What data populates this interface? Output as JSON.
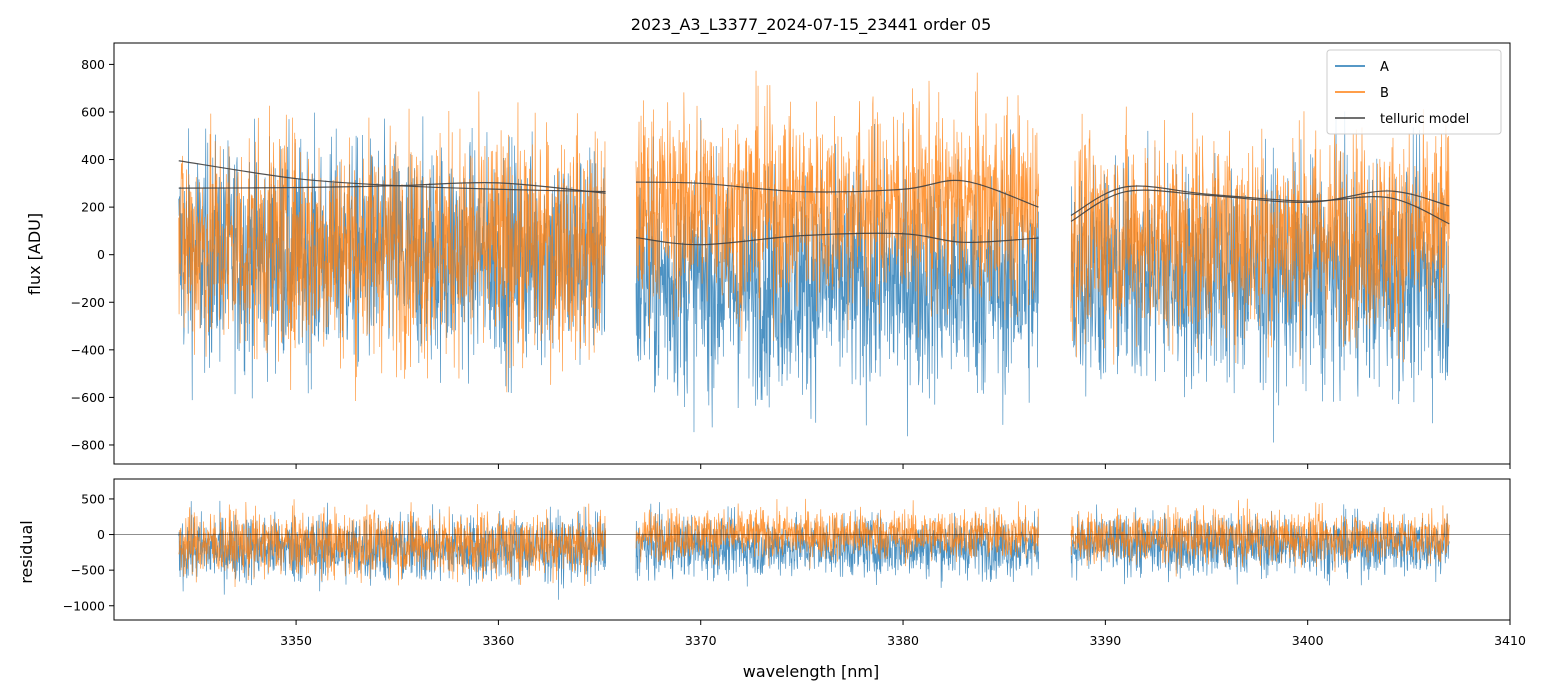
{
  "chart_data": [
    {
      "type": "line",
      "title": "2023_A3_L3377_2024-07-15_23441  order 05",
      "ylabel": "flux [ADU]",
      "xlim": [
        3341,
        3410
      ],
      "ylim": [
        -880,
        890
      ],
      "x_ticks": [
        3350,
        3360,
        3370,
        3380,
        3390,
        3400,
        3410
      ],
      "y_ticks": [
        -800,
        -600,
        -400,
        -200,
        0,
        200,
        400,
        600,
        800
      ],
      "y_tick_labels": [
        "−800",
        "−600",
        "−400",
        "−200",
        "0",
        "200",
        "400",
        "600",
        "800"
      ],
      "legend": {
        "placement": "top-right",
        "entries": [
          {
            "label": "A",
            "color": "#1f77b4"
          },
          {
            "label": "B",
            "color": "#ff7f0e"
          },
          {
            "label": "telluric model",
            "color": "#404040"
          }
        ]
      },
      "segments": [
        {
          "x_start": 3344.2,
          "x_end": 3365.3
        },
        {
          "x_start": 3366.8,
          "x_end": 3386.7
        },
        {
          "x_start": 3388.3,
          "x_end": 3407.0
        }
      ],
      "series": [
        {
          "name": "A",
          "color": "#1f77b4",
          "description_level": "noisy",
          "band": [
            {
              "segment": 0,
              "mean": 0,
              "spread": 420
            },
            {
              "segment": 1,
              "mean": -120,
              "spread": 430
            },
            {
              "segment": 2,
              "mean": -90,
              "spread": 420
            }
          ]
        },
        {
          "name": "B",
          "color": "#ff7f0e",
          "band": [
            {
              "segment": 0,
              "mean": 40,
              "spread": 430
            },
            {
              "segment": 1,
              "mean": 200,
              "spread": 380
            },
            {
              "segment": 2,
              "mean": 80,
              "spread": 390
            }
          ]
        },
        {
          "name": "telluric model",
          "color": "#404040",
          "curves": [
            {
              "segment": 0,
              "x": [
                3344.2,
                3350,
                3355,
                3360,
                3365.3
              ],
              "y": [
                395,
                320,
                290,
                275,
                265
              ]
            },
            {
              "segment": 0,
              "x": [
                3344.2,
                3350,
                3355,
                3360,
                3365.3
              ],
              "y": [
                280,
                282,
                290,
                302,
                258
              ]
            },
            {
              "segment": 1,
              "x": [
                3366.8,
                3370,
                3375,
                3380,
                3383,
                3386.7
              ],
              "y": [
                305,
                300,
                265,
                275,
                310,
                200
              ]
            },
            {
              "segment": 1,
              "x": [
                3366.8,
                3370,
                3375,
                3380,
                3383,
                3386.7
              ],
              "y": [
                72,
                42,
                80,
                88,
                52,
                70
              ]
            },
            {
              "segment": 2,
              "x": [
                3388.3,
                3391,
                3395,
                3400,
                3404,
                3407.0
              ],
              "y": [
                165,
                285,
                255,
                225,
                240,
                130
              ]
            },
            {
              "segment": 2,
              "x": [
                3388.3,
                3391,
                3395,
                3400,
                3404,
                3407.0
              ],
              "y": [
                140,
                265,
                250,
                220,
                268,
                205
              ]
            }
          ]
        }
      ]
    },
    {
      "type": "line",
      "xlabel": "wavelength [nm]",
      "ylabel": "residual",
      "xlim": [
        3341,
        3410
      ],
      "ylim": [
        -1200,
        780
      ],
      "x_ticks": [
        3350,
        3360,
        3370,
        3380,
        3390,
        3400,
        3410
      ],
      "x_tick_labels": [
        "3350",
        "3360",
        "3370",
        "3380",
        "3390",
        "3400",
        "3410"
      ],
      "y_ticks": [
        -1000,
        -500,
        0,
        500
      ],
      "y_tick_labels": [
        "−1000",
        "−500",
        "0",
        "500"
      ],
      "zero_line": 0,
      "series": [
        {
          "name": "A",
          "color": "#1f77b4",
          "band": [
            {
              "segment": 0,
              "mean": -200,
              "spread": 430
            },
            {
              "segment": 1,
              "mean": -170,
              "spread": 380
            },
            {
              "segment": 2,
              "mean": -150,
              "spread": 380
            }
          ]
        },
        {
          "name": "B",
          "color": "#ff7f0e",
          "band": [
            {
              "segment": 0,
              "mean": -130,
              "spread": 420
            },
            {
              "segment": 1,
              "mean": 0,
              "spread": 320
            },
            {
              "segment": 2,
              "mean": -40,
              "spread": 330
            }
          ]
        }
      ]
    }
  ]
}
